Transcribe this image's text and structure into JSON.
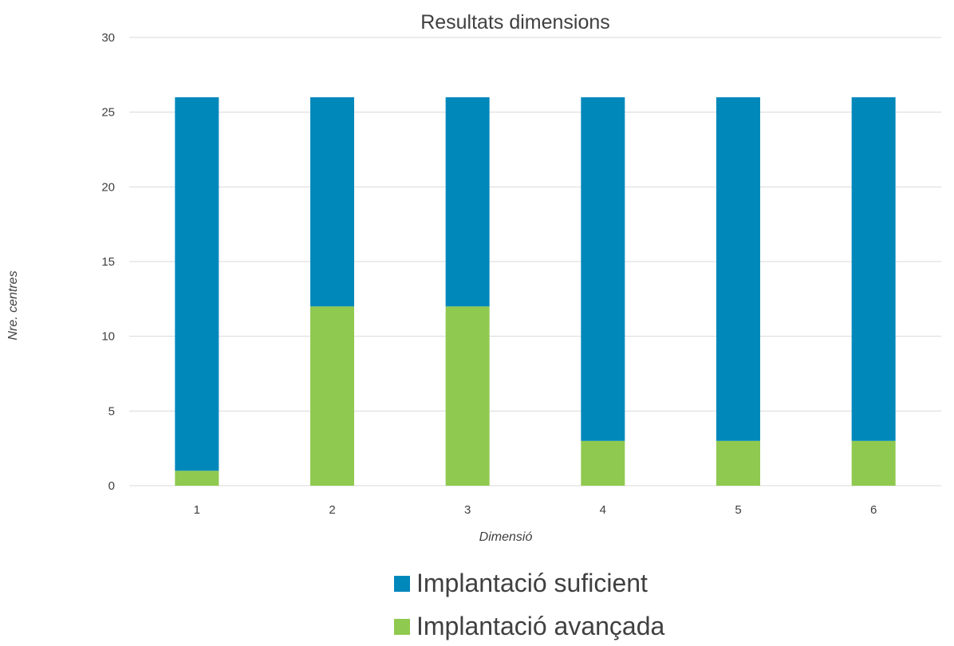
{
  "chart_data": {
    "type": "bar",
    "stacked": true,
    "title": "Resultats dimensions",
    "xlabel": "Dimensió",
    "ylabel": "Nre. centres",
    "categories": [
      "1",
      "2",
      "3",
      "4",
      "5",
      "6"
    ],
    "ylim": [
      0,
      30
    ],
    "yticks": [
      0,
      5,
      10,
      15,
      20,
      25,
      30
    ],
    "grid": true,
    "legend_position": "bottom",
    "series": [
      {
        "name": "Implantació avançada",
        "values": [
          1,
          12,
          12,
          3,
          3,
          3
        ],
        "color": "#8fc94f"
      },
      {
        "name": "Implantació suficient",
        "values": [
          25,
          14,
          14,
          23,
          23,
          23
        ],
        "color": "#0088bb"
      }
    ],
    "legend_order": [
      "Implantació suficient",
      "Implantació avançada"
    ]
  }
}
